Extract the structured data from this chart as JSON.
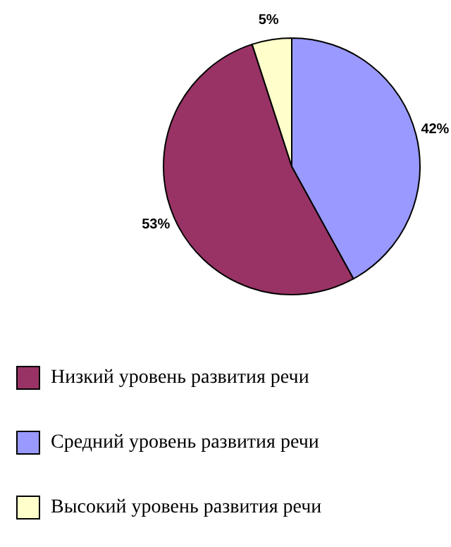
{
  "chart_data": {
    "type": "pie",
    "categories": [
      "Низкий уровень развития речи",
      "Средний уровень развития речи",
      "Высокий уровень развития речи"
    ],
    "values": [
      53,
      42,
      5
    ],
    "colors": [
      "#993366",
      "#9999ff",
      "#ffffcc"
    ],
    "value_labels": [
      "53%",
      "42%",
      "5%"
    ],
    "legend": "bottom"
  }
}
